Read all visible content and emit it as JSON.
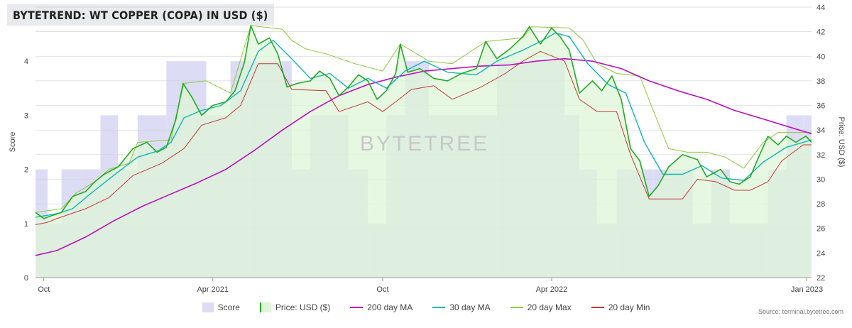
{
  "title": "BYTETREND: WT COPPER (COPA) IN USD ($)",
  "watermark": "BYTETREE",
  "source": "Source: terminal.bytetree.com",
  "colors": {
    "score": "#dcdcf4",
    "price_fill": "#dff5d8",
    "price_line": "#22aa22",
    "ma200": "#bb11bb",
    "ma30": "#11b5b5",
    "max20": "#8cc83c",
    "min20": "#c23a3a",
    "grid": "#cccccc"
  },
  "chart_data": {
    "type": "line",
    "title": "BYTETREND: WT COPPER (COPA) IN USD ($)",
    "x_range": [
      "2020-09-22",
      "2023-01-06"
    ],
    "x_ticks": [
      {
        "date": "2020-10-01",
        "label": "Oct"
      },
      {
        "date": "2021-04-01",
        "label": "Apr 2021"
      },
      {
        "date": "2021-10-01",
        "label": "Oct"
      },
      {
        "date": "2022-04-01",
        "label": "Apr 2022"
      },
      {
        "date": "2023-01-01",
        "label": "Jan 2023"
      }
    ],
    "y_left": {
      "label": "Score",
      "min": 0,
      "max": 5,
      "ticks": [
        0,
        1,
        2,
        3,
        4
      ]
    },
    "y_right": {
      "label": "Price: USD ($)",
      "min": 22,
      "max": 44,
      "ticks": [
        22,
        24,
        26,
        28,
        30,
        32,
        34,
        36,
        38,
        40,
        42,
        44
      ]
    },
    "grid": true,
    "legend_position": "bottom",
    "score_series": {
      "name": "Score",
      "values": [
        [
          "2020-09-22",
          2
        ],
        [
          "2020-10-05",
          1
        ],
        [
          "2020-10-20",
          2
        ],
        [
          "2020-11-10",
          2
        ],
        [
          "2020-12-01",
          3
        ],
        [
          "2020-12-20",
          2
        ],
        [
          "2021-01-10",
          3
        ],
        [
          "2021-02-10",
          4
        ],
        [
          "2021-03-05",
          4
        ],
        [
          "2021-03-25",
          3
        ],
        [
          "2021-04-20",
          4
        ],
        [
          "2021-05-10",
          4
        ],
        [
          "2021-06-01",
          4
        ],
        [
          "2021-06-25",
          2
        ],
        [
          "2021-07-15",
          3
        ],
        [
          "2021-08-05",
          3
        ],
        [
          "2021-08-25",
          2
        ],
        [
          "2021-09-15",
          1
        ],
        [
          "2021-10-05",
          3
        ],
        [
          "2021-10-25",
          4
        ],
        [
          "2021-11-20",
          3
        ],
        [
          "2021-12-15",
          3
        ],
        [
          "2022-01-10",
          3
        ],
        [
          "2022-02-01",
          4
        ],
        [
          "2022-03-01",
          4
        ],
        [
          "2022-03-25",
          4
        ],
        [
          "2022-04-15",
          3
        ],
        [
          "2022-05-01",
          2
        ],
        [
          "2022-05-20",
          1
        ],
        [
          "2022-06-10",
          2
        ],
        [
          "2022-06-30",
          2
        ],
        [
          "2022-07-20",
          2
        ],
        [
          "2022-08-10",
          2
        ],
        [
          "2022-08-31",
          1
        ],
        [
          "2022-09-20",
          2
        ],
        [
          "2022-10-10",
          1
        ],
        [
          "2022-10-31",
          1
        ],
        [
          "2022-11-20",
          2
        ],
        [
          "2022-12-10",
          3
        ],
        [
          "2022-12-28",
          3
        ],
        [
          "2023-01-06",
          3
        ]
      ]
    },
    "series": [
      {
        "name": "Price: USD ($)",
        "values": [
          [
            "2020-09-22",
            27.3
          ],
          [
            "2020-10-01",
            26.8
          ],
          [
            "2020-10-08",
            27.0
          ],
          [
            "2020-10-20",
            27.3
          ],
          [
            "2020-11-01",
            28.6
          ],
          [
            "2020-11-15",
            29.0
          ],
          [
            "2020-11-25",
            29.8
          ],
          [
            "2020-12-05",
            30.4
          ],
          [
            "2020-12-20",
            31.0
          ],
          [
            "2021-01-05",
            32.5
          ],
          [
            "2021-01-20",
            33.0
          ],
          [
            "2021-01-31",
            32.2
          ],
          [
            "2021-02-10",
            32.6
          ],
          [
            "2021-02-20",
            34.8
          ],
          [
            "2021-02-28",
            37.8
          ],
          [
            "2021-03-10",
            36.6
          ],
          [
            "2021-03-20",
            35.2
          ],
          [
            "2021-04-01",
            36.0
          ],
          [
            "2021-04-15",
            36.3
          ],
          [
            "2021-04-25",
            37.2
          ],
          [
            "2021-05-05",
            39.5
          ],
          [
            "2021-05-12",
            42.5
          ],
          [
            "2021-05-20",
            41.0
          ],
          [
            "2021-06-01",
            41.5
          ],
          [
            "2021-06-10",
            40.2
          ],
          [
            "2021-06-20",
            37.5
          ],
          [
            "2021-07-01",
            37.8
          ],
          [
            "2021-07-15",
            38.0
          ],
          [
            "2021-07-25",
            38.8
          ],
          [
            "2021-08-05",
            38.2
          ],
          [
            "2021-08-15",
            36.8
          ],
          [
            "2021-08-25",
            37.5
          ],
          [
            "2021-09-05",
            38.5
          ],
          [
            "2021-09-15",
            38.0
          ],
          [
            "2021-09-25",
            36.5
          ],
          [
            "2021-10-05",
            37.2
          ],
          [
            "2021-10-15",
            38.6
          ],
          [
            "2021-10-20",
            41.0
          ],
          [
            "2021-10-28",
            38.7
          ],
          [
            "2021-11-10",
            39.0
          ],
          [
            "2021-11-25",
            38.2
          ],
          [
            "2021-12-10",
            38.0
          ],
          [
            "2021-12-25",
            38.6
          ],
          [
            "2022-01-10",
            39.0
          ],
          [
            "2022-01-20",
            41.2
          ],
          [
            "2022-02-01",
            39.8
          ],
          [
            "2022-02-15",
            40.6
          ],
          [
            "2022-03-01",
            41.6
          ],
          [
            "2022-03-08",
            42.4
          ],
          [
            "2022-03-20",
            41.0
          ],
          [
            "2022-04-01",
            42.3
          ],
          [
            "2022-04-10",
            41.6
          ],
          [
            "2022-04-20",
            40.5
          ],
          [
            "2022-05-01",
            37.0
          ],
          [
            "2022-05-15",
            38.0
          ],
          [
            "2022-05-25",
            37.2
          ],
          [
            "2022-06-05",
            38.4
          ],
          [
            "2022-06-15",
            36.5
          ],
          [
            "2022-06-25",
            32.5
          ],
          [
            "2022-07-05",
            31.5
          ],
          [
            "2022-07-15",
            28.6
          ],
          [
            "2022-07-25",
            29.5
          ],
          [
            "2022-08-05",
            31.0
          ],
          [
            "2022-08-20",
            32.0
          ],
          [
            "2022-09-05",
            31.6
          ],
          [
            "2022-09-15",
            30.2
          ],
          [
            "2022-09-30",
            30.8
          ],
          [
            "2022-10-10",
            29.8
          ],
          [
            "2022-10-20",
            29.6
          ],
          [
            "2022-11-01",
            30.2
          ],
          [
            "2022-11-10",
            31.8
          ],
          [
            "2022-11-20",
            33.5
          ],
          [
            "2022-12-01",
            32.8
          ],
          [
            "2022-12-10",
            33.5
          ],
          [
            "2022-12-20",
            33.0
          ],
          [
            "2022-12-31",
            33.5
          ],
          [
            "2023-01-06",
            33.0
          ]
        ]
      },
      {
        "name": "200 day MA",
        "values": [
          [
            "2020-09-22",
            23.8
          ],
          [
            "2020-10-15",
            24.2
          ],
          [
            "2020-11-15",
            25.3
          ],
          [
            "2020-12-15",
            26.6
          ],
          [
            "2021-01-15",
            27.8
          ],
          [
            "2021-02-15",
            28.8
          ],
          [
            "2021-03-15",
            29.7
          ],
          [
            "2021-04-15",
            30.8
          ],
          [
            "2021-05-15",
            32.3
          ],
          [
            "2021-06-15",
            34.0
          ],
          [
            "2021-07-15",
            35.5
          ],
          [
            "2021-08-15",
            36.8
          ],
          [
            "2021-09-15",
            37.7
          ],
          [
            "2021-10-15",
            38.3
          ],
          [
            "2021-11-15",
            38.8
          ],
          [
            "2021-12-15",
            39.0
          ],
          [
            "2022-01-15",
            39.2
          ],
          [
            "2022-02-15",
            39.3
          ],
          [
            "2022-03-15",
            39.6
          ],
          [
            "2022-04-15",
            39.8
          ],
          [
            "2022-05-15",
            39.6
          ],
          [
            "2022-06-15",
            39.0
          ],
          [
            "2022-07-15",
            38.0
          ],
          [
            "2022-08-15",
            37.2
          ],
          [
            "2022-09-15",
            36.5
          ],
          [
            "2022-10-15",
            35.6
          ],
          [
            "2022-11-15",
            34.9
          ],
          [
            "2022-12-15",
            34.2
          ],
          [
            "2023-01-06",
            33.7
          ]
        ]
      },
      {
        "name": "30 day MA",
        "values": [
          [
            "2020-09-22",
            26.9
          ],
          [
            "2020-10-15",
            27.2
          ],
          [
            "2020-11-01",
            27.6
          ],
          [
            "2020-11-20",
            28.8
          ],
          [
            "2020-12-15",
            30.3
          ],
          [
            "2021-01-10",
            31.8
          ],
          [
            "2021-02-01",
            32.3
          ],
          [
            "2021-02-15",
            33.0
          ],
          [
            "2021-03-01",
            35.0
          ],
          [
            "2021-03-20",
            35.6
          ],
          [
            "2021-04-10",
            36.0
          ],
          [
            "2021-05-01",
            37.2
          ],
          [
            "2021-05-20",
            40.4
          ],
          [
            "2021-06-05",
            41.3
          ],
          [
            "2021-06-25",
            39.8
          ],
          [
            "2021-07-15",
            38.2
          ],
          [
            "2021-08-05",
            38.6
          ],
          [
            "2021-08-25",
            37.4
          ],
          [
            "2021-09-15",
            38.2
          ],
          [
            "2021-10-05",
            37.4
          ],
          [
            "2021-10-25",
            38.8
          ],
          [
            "2021-11-15",
            39.6
          ],
          [
            "2021-12-10",
            38.7
          ],
          [
            "2022-01-10",
            38.5
          ],
          [
            "2022-02-01",
            39.6
          ],
          [
            "2022-03-01",
            40.5
          ],
          [
            "2022-03-20",
            41.2
          ],
          [
            "2022-04-05",
            41.9
          ],
          [
            "2022-04-20",
            41.6
          ],
          [
            "2022-05-10",
            39.4
          ],
          [
            "2022-06-01",
            37.7
          ],
          [
            "2022-06-20",
            37.0
          ],
          [
            "2022-07-10",
            33.0
          ],
          [
            "2022-07-30",
            30.4
          ],
          [
            "2022-08-20",
            30.4
          ],
          [
            "2022-09-10",
            31.1
          ],
          [
            "2022-10-01",
            30.1
          ],
          [
            "2022-10-25",
            29.9
          ],
          [
            "2022-11-15",
            31.4
          ],
          [
            "2022-12-10",
            32.6
          ],
          [
            "2023-01-06",
            33.2
          ]
        ]
      },
      {
        "name": "20 day Max",
        "values": [
          [
            "2020-09-22",
            27.3
          ],
          [
            "2020-10-20",
            27.6
          ],
          [
            "2020-11-05",
            28.9
          ],
          [
            "2020-11-25",
            29.8
          ],
          [
            "2020-12-10",
            30.8
          ],
          [
            "2021-01-01",
            31.3
          ],
          [
            "2021-01-10",
            33.0
          ],
          [
            "2021-02-15",
            33.2
          ],
          [
            "2021-02-20",
            35.0
          ],
          [
            "2021-03-01",
            37.8
          ],
          [
            "2021-03-25",
            38.0
          ],
          [
            "2021-04-20",
            37.0
          ],
          [
            "2021-05-12",
            42.5
          ],
          [
            "2021-06-15",
            42.2
          ],
          [
            "2021-06-25",
            41.3
          ],
          [
            "2021-07-10",
            40.6
          ],
          [
            "2021-08-01",
            40.2
          ],
          [
            "2021-09-01",
            39.4
          ],
          [
            "2021-10-01",
            38.8
          ],
          [
            "2021-10-20",
            41.0
          ],
          [
            "2021-11-20",
            39.6
          ],
          [
            "2021-12-15",
            39.4
          ],
          [
            "2022-01-20",
            41.2
          ],
          [
            "2022-03-01",
            41.5
          ],
          [
            "2022-03-10",
            42.4
          ],
          [
            "2022-04-20",
            42.3
          ],
          [
            "2022-05-05",
            41.3
          ],
          [
            "2022-05-20",
            39.4
          ],
          [
            "2022-06-10",
            38.6
          ],
          [
            "2022-07-05",
            38.4
          ],
          [
            "2022-07-20",
            35.5
          ],
          [
            "2022-08-05",
            32.5
          ],
          [
            "2022-08-25",
            32.2
          ],
          [
            "2022-09-15",
            32.2
          ],
          [
            "2022-10-05",
            31.8
          ],
          [
            "2022-10-25",
            30.9
          ],
          [
            "2022-11-15",
            33.0
          ],
          [
            "2022-12-01",
            33.8
          ],
          [
            "2023-01-06",
            33.8
          ]
        ]
      },
      {
        "name": "20 day Min",
        "values": [
          [
            "2020-09-22",
            26.3
          ],
          [
            "2020-10-05",
            26.5
          ],
          [
            "2020-10-15",
            26.8
          ],
          [
            "2020-11-15",
            27.6
          ],
          [
            "2020-12-10",
            28.5
          ],
          [
            "2021-01-05",
            30.3
          ],
          [
            "2021-02-05",
            31.3
          ],
          [
            "2021-02-15",
            31.8
          ],
          [
            "2021-03-01",
            32.5
          ],
          [
            "2021-03-20",
            34.4
          ],
          [
            "2021-04-15",
            35.0
          ],
          [
            "2021-05-01",
            36.0
          ],
          [
            "2021-05-20",
            39.4
          ],
          [
            "2021-06-10",
            39.4
          ],
          [
            "2021-06-25",
            37.3
          ],
          [
            "2021-08-01",
            37.2
          ],
          [
            "2021-08-15",
            35.5
          ],
          [
            "2021-09-15",
            36.3
          ],
          [
            "2021-10-01",
            35.5
          ],
          [
            "2021-10-15",
            36.3
          ],
          [
            "2021-11-01",
            37.3
          ],
          [
            "2021-11-25",
            37.6
          ],
          [
            "2021-12-15",
            36.5
          ],
          [
            "2022-01-15",
            37.5
          ],
          [
            "2022-02-10",
            38.6
          ],
          [
            "2022-03-01",
            39.6
          ],
          [
            "2022-03-20",
            40.4
          ],
          [
            "2022-04-15",
            39.6
          ],
          [
            "2022-05-01",
            36.5
          ],
          [
            "2022-05-20",
            35.5
          ],
          [
            "2022-06-10",
            35.5
          ],
          [
            "2022-06-25",
            32.0
          ],
          [
            "2022-07-15",
            28.4
          ],
          [
            "2022-08-20",
            28.4
          ],
          [
            "2022-09-05",
            30.0
          ],
          [
            "2022-09-25",
            29.8
          ],
          [
            "2022-10-15",
            29.1
          ],
          [
            "2022-11-01",
            29.1
          ],
          [
            "2022-11-20",
            29.8
          ],
          [
            "2022-12-05",
            31.5
          ],
          [
            "2022-12-28",
            32.8
          ],
          [
            "2023-01-06",
            32.8
          ]
        ]
      }
    ]
  }
}
